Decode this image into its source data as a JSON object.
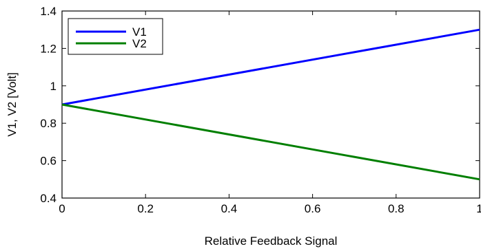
{
  "chart_data": {
    "type": "line",
    "title": "",
    "xlabel": "Relative Feedback Signal",
    "ylabel": "V1, V2  [Volt]",
    "xlim": [
      0,
      1
    ],
    "ylim": [
      0.4,
      1.4
    ],
    "xticks": [
      0,
      0.2,
      0.4,
      0.6,
      0.8,
      1
    ],
    "xtick_labels": [
      "0",
      "0.2",
      "0.4",
      "0.6",
      "0.8",
      "1"
    ],
    "yticks": [
      0.4,
      0.6,
      0.8,
      1.0,
      1.2,
      1.4
    ],
    "ytick_labels": [
      "0.4",
      "0.6",
      "0.8",
      "1",
      "1.2",
      "1.4"
    ],
    "grid": false,
    "legend_position": "top-left",
    "series": [
      {
        "name": "V1",
        "color": "#0000ff",
        "x": [
          0,
          1
        ],
        "y": [
          0.9,
          1.3
        ]
      },
      {
        "name": "V2",
        "color": "#007f00",
        "x": [
          0,
          1
        ],
        "y": [
          0.9,
          0.5
        ]
      }
    ]
  }
}
